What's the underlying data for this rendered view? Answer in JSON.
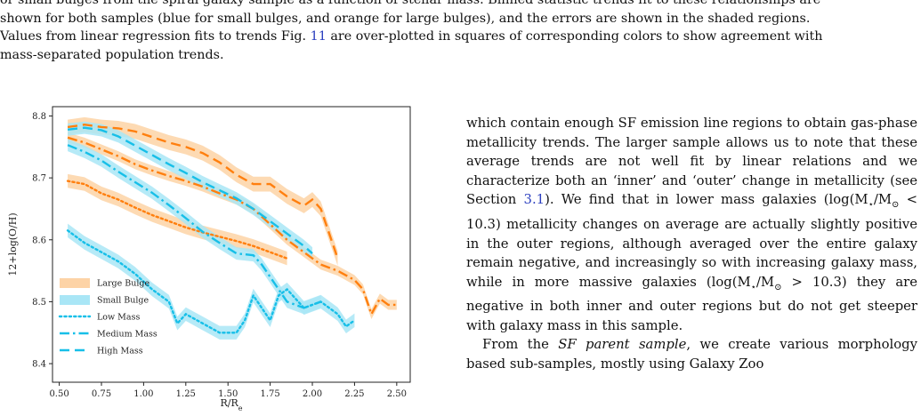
{
  "caption": {
    "line1": "or small bulges from the spiral galaxy sample as a function of stellar mass. Binned statistic trends fit to these relationships are",
    "line2": "shown for both samples (blue for small bulges, and orange for large bulges), and the errors are shown in the shaded regions.",
    "line3_pre": "Values from linear regression fits to trends Fig.",
    "line3_ref": "11",
    "line3_post": "are over-plotted in squares of corresponding colors to show agreement with",
    "line4": "mass-separated population trends."
  },
  "body": {
    "p1_a": "which contain enough SF emission line regions to obtain gas-phase metallicity trends. The larger sample allows us to note that these average trends are not well fit by linear relations and we characterize both an ‘inner’ and ‘outer’ change in metallicity (see Section",
    "p1_ref": "3.1",
    "p1_b": "). We find that in lower mass galaxies (log(M",
    "p1_c": "/M",
    "p1_d": " < 10.3) metallicity changes on average are actually slightly positive in the outer regions, although averaged over the entire galaxy remain negative, and increasingly so with increasing galaxy mass, while in more massive galaxies (log(M",
    "p1_e": "/M",
    "p1_f": " > 10.3) they are negative in both inner and outer regions but do not get steeper with galaxy mass in this sample.",
    "p2_a": "From the",
    "p2_em": "SF parent sample",
    "p2_b": ", we create various morphology based sub-samples, mostly using Galaxy Zoo"
  },
  "colors": {
    "orange": "#ff7f0e",
    "orange_band": "#fdd3a6",
    "blue": "#17bfe8",
    "blue_band": "#a9e6f6"
  },
  "chart_data": {
    "type": "line",
    "xlabel": "R/Re",
    "ylabel": "12+log(O/H)",
    "xlim": [
      0.46,
      2.58
    ],
    "ylim": [
      8.37,
      8.815
    ],
    "xticks": [
      "0.50",
      "0.75",
      "1.00",
      "1.25",
      "1.50",
      "1.75",
      "2.00",
      "2.25",
      "2.50"
    ],
    "yticks": [
      "8.4",
      "8.5",
      "8.6",
      "8.7",
      "8.8"
    ],
    "legend_position": "lower-left",
    "legend": [
      {
        "label": "Large Bulge",
        "kind": "band",
        "color": "#fdd3a6"
      },
      {
        "label": "Small Bulge",
        "kind": "band",
        "color": "#a9e6f6"
      },
      {
        "label": "Low Mass",
        "kind": "dotted",
        "color": "#17bfe8"
      },
      {
        "label": "Medium Mass",
        "kind": "dashdot",
        "color": "#17bfe8"
      },
      {
        "label": "High Mass",
        "kind": "dashed",
        "color": "#17bfe8"
      }
    ],
    "series": [
      {
        "bulge": "large",
        "mass": "low",
        "style": "dotted",
        "color": "#ff7f0e",
        "band": "#fdd3a6",
        "err": 0.011,
        "x": [
          0.55,
          0.65,
          0.75,
          0.85,
          0.95,
          1.05,
          1.15,
          1.25,
          1.35,
          1.45,
          1.55,
          1.65,
          1.75,
          1.85
        ],
        "y": [
          8.695,
          8.69,
          8.675,
          8.665,
          8.652,
          8.64,
          8.63,
          8.62,
          8.612,
          8.605,
          8.598,
          8.59,
          8.58,
          8.57
        ]
      },
      {
        "bulge": "large",
        "mass": "medium",
        "style": "dashdot",
        "color": "#ff7f0e",
        "band": "#fdd3a6",
        "err": 0.008,
        "x": [
          0.55,
          0.65,
          0.75,
          0.85,
          0.95,
          1.05,
          1.15,
          1.25,
          1.35,
          1.45,
          1.55,
          1.65,
          1.75,
          1.85,
          1.95,
          2.05,
          2.15,
          2.25,
          2.3,
          2.35,
          2.4,
          2.45,
          2.5
        ],
        "y": [
          8.765,
          8.757,
          8.746,
          8.735,
          8.722,
          8.712,
          8.703,
          8.695,
          8.686,
          8.675,
          8.665,
          8.65,
          8.625,
          8.6,
          8.58,
          8.56,
          8.55,
          8.535,
          8.52,
          8.48,
          8.505,
          8.495,
          8.495
        ]
      },
      {
        "bulge": "large",
        "mass": "high",
        "style": "dashed",
        "color": "#ff7f0e",
        "band": "#fdd3a6",
        "err": 0.012,
        "x": [
          0.55,
          0.65,
          0.75,
          0.85,
          0.95,
          1.05,
          1.15,
          1.25,
          1.35,
          1.45,
          1.55,
          1.65,
          1.75,
          1.85,
          1.95,
          2.0,
          2.05,
          2.1,
          2.15
        ],
        "y": [
          8.782,
          8.786,
          8.782,
          8.78,
          8.775,
          8.766,
          8.757,
          8.75,
          8.74,
          8.725,
          8.705,
          8.69,
          8.69,
          8.67,
          8.655,
          8.665,
          8.65,
          8.61,
          8.57
        ]
      },
      {
        "bulge": "small",
        "mass": "low",
        "style": "dotted",
        "color": "#17bfe8",
        "band": "#a9e6f6",
        "err": 0.011,
        "x": [
          0.55,
          0.65,
          0.75,
          0.85,
          0.95,
          1.05,
          1.15,
          1.2,
          1.25,
          1.35,
          1.45,
          1.55,
          1.6,
          1.65,
          1.7,
          1.75,
          1.8,
          1.85,
          1.95,
          2.05,
          2.15,
          2.2,
          2.25
        ],
        "y": [
          8.615,
          8.595,
          8.58,
          8.565,
          8.545,
          8.52,
          8.5,
          8.465,
          8.48,
          8.465,
          8.45,
          8.45,
          8.47,
          8.51,
          8.49,
          8.47,
          8.51,
          8.52,
          8.49,
          8.5,
          8.48,
          8.46,
          8.47
        ]
      },
      {
        "bulge": "small",
        "mass": "medium",
        "style": "dashdot",
        "color": "#17bfe8",
        "band": "#a9e6f6",
        "err": 0.01,
        "x": [
          0.55,
          0.65,
          0.75,
          0.85,
          0.95,
          1.05,
          1.15,
          1.25,
          1.35,
          1.45,
          1.55,
          1.65,
          1.7,
          1.75,
          1.8,
          1.85,
          1.95,
          2.05
        ],
        "y": [
          8.753,
          8.742,
          8.728,
          8.71,
          8.693,
          8.676,
          8.656,
          8.635,
          8.613,
          8.595,
          8.578,
          8.575,
          8.56,
          8.54,
          8.52,
          8.5,
          8.49,
          8.5
        ]
      },
      {
        "bulge": "small",
        "mass": "high",
        "style": "dashed",
        "color": "#17bfe8",
        "band": "#a9e6f6",
        "err": 0.01,
        "x": [
          0.55,
          0.65,
          0.75,
          0.85,
          0.95,
          1.05,
          1.15,
          1.25,
          1.35,
          1.45,
          1.55,
          1.65,
          1.75,
          1.85,
          1.95,
          2.0
        ],
        "y": [
          8.778,
          8.781,
          8.777,
          8.767,
          8.752,
          8.737,
          8.722,
          8.708,
          8.693,
          8.68,
          8.667,
          8.65,
          8.63,
          8.61,
          8.59,
          8.578
        ]
      }
    ]
  }
}
